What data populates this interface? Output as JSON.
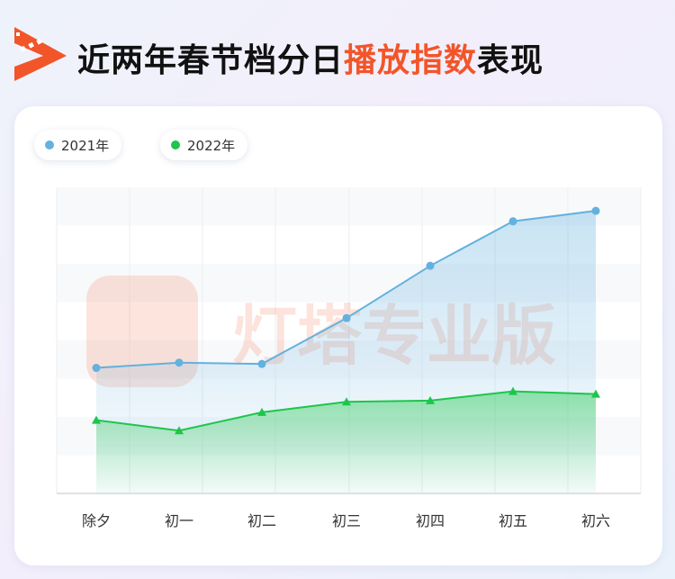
{
  "header": {
    "title_part1": "近两年春节档分日",
    "title_highlight": "播放指数",
    "title_part2": "表现"
  },
  "watermark": "灯塔专业版",
  "colors": {
    "series_2021": "#63b1de",
    "series_2022": "#1cc64b",
    "title_highlight": "#f2552a",
    "logo": "#f2552a"
  },
  "chart_data": {
    "type": "line",
    "categories": [
      "除夕",
      "初一",
      "初二",
      "初三",
      "初四",
      "初五",
      "初六"
    ],
    "series": [
      {
        "name": "2021年",
        "values": [
          48,
          50,
          49.5,
          67,
          87,
          104,
          108
        ]
      },
      {
        "name": "2022年",
        "values": [
          28,
          24,
          31,
          35,
          35.5,
          39,
          38
        ]
      }
    ],
    "ylim": [
      0,
      117
    ],
    "grid": true,
    "area_fill": true,
    "legend_position": "top-left",
    "xlabel": "",
    "ylabel": ""
  }
}
